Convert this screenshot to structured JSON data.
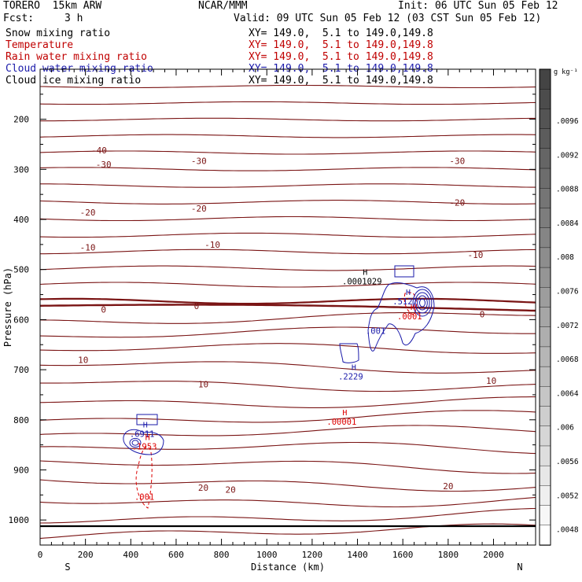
{
  "header": {
    "model": "TORERO  15km ARW",
    "org": "NCAR/MMM",
    "init": "Init: 06 UTC Sun 05 Feb 12",
    "fcst_label": "Fcst:",
    "fcst_value": "3 h",
    "valid": "Valid: 09 UTC Sun 05 Feb 12 (03 CST Sun 05 Feb 12)"
  },
  "fields": [
    {
      "name": "Snow mixing ratio",
      "xy": "XY= 149.0,  5.1 to 149.0,149.8",
      "color": "#000000"
    },
    {
      "name": "Temperature",
      "xy": "XY= 149.0,  5.1 to 149.0,149.8",
      "color": "#c00000"
    },
    {
      "name": "Rain water mixing ratio",
      "xy": "XY= 149.0,  5.1 to 149.0,149.8",
      "color": "#c00000"
    },
    {
      "name": "Cloud water mixing ratio",
      "xy": "XY= 149.0,  5.1 to 149.0,149.8",
      "color": "#1a1aaa"
    },
    {
      "name": "Cloud ice mixing ratio",
      "xy": "XY= 149.0,  5.1 to 149.0,149.8",
      "color": "#000000"
    }
  ],
  "colors": {
    "temperature": "#7a1414",
    "zero_isotherm": "#7a1414",
    "rain": "#dd0000",
    "cloud_water": "#1a1aaa",
    "ground": "#000000"
  },
  "chart_data": {
    "type": "contour",
    "xlabel": "Distance (km)",
    "ylabel": "Pressure (hPa)",
    "xlim": [
      0,
      2180
    ],
    "ylim": [
      1050,
      100
    ],
    "x_ticks": [
      0,
      200,
      400,
      600,
      800,
      1000,
      1200,
      1400,
      1600,
      1800,
      2000
    ],
    "y_ticks": [
      200,
      300,
      400,
      500,
      600,
      700,
      800,
      900,
      1000
    ],
    "x_start_label": "S",
    "x_end_label": "N",
    "colorbar": {
      "unit": "g kg⁻¹",
      "ticks": [
        ".0096",
        ".0092",
        ".0088",
        ".0084",
        ".008",
        ".0076",
        ".0072",
        ".0068",
        ".0064",
        ".006",
        ".0056",
        ".0052",
        ".0048"
      ],
      "range": [
        0.0046,
        0.01
      ],
      "shade_from": "#ffffff",
      "shade_to": "#444444"
    },
    "isotherm_labels": [
      {
        "text": "-40",
        "x": 260,
        "p": 262
      },
      {
        "text": "-30",
        "x": 280,
        "p": 290
      },
      {
        "text": "-30",
        "x": 700,
        "p": 283
      },
      {
        "text": "-30",
        "x": 1840,
        "p": 283
      },
      {
        "text": "-20",
        "x": 210,
        "p": 386
      },
      {
        "text": "-20",
        "x": 700,
        "p": 378
      },
      {
        "text": "-20",
        "x": 1840,
        "p": 366
      },
      {
        "text": "-10",
        "x": 210,
        "p": 456
      },
      {
        "text": "-10",
        "x": 760,
        "p": 450
      },
      {
        "text": "-10",
        "x": 1920,
        "p": 471
      },
      {
        "text": "0",
        "x": 280,
        "p": 580
      },
      {
        "text": "0",
        "x": 690,
        "p": 573
      },
      {
        "text": "0",
        "x": 1950,
        "p": 589
      },
      {
        "text": "10",
        "x": 190,
        "p": 680
      },
      {
        "text": "10",
        "x": 720,
        "p": 729
      },
      {
        "text": "10",
        "x": 1990,
        "p": 722
      },
      {
        "text": "20",
        "x": 720,
        "p": 935
      },
      {
        "text": "20",
        "x": 840,
        "p": 939
      },
      {
        "text": "20",
        "x": 1800,
        "p": 932
      }
    ],
    "extrema": [
      {
        "marker": "H",
        "value": ".0001029",
        "x": 1420,
        "p": 520,
        "color": "#000000"
      },
      {
        "marker": "H",
        "value": ".5127",
        "x": 1610,
        "p": 560,
        "color": "#1a1aaa"
      },
      {
        "marker": "H",
        "value": ".0001",
        "x": 1630,
        "p": 590,
        "color": "#dd0000"
      },
      {
        "marker": "",
        "value": ".001",
        "x": 1480,
        "p": 619,
        "color": "#1a1aaa"
      },
      {
        "marker": "H",
        "value": ".2229",
        "x": 1370,
        "p": 710,
        "color": "#1a1aaa"
      },
      {
        "marker": "H",
        "value": ".00001",
        "x": 1330,
        "p": 800,
        "color": "#dd0000"
      },
      {
        "marker": "H",
        "value": ".6911",
        "x": 450,
        "p": 825,
        "color": "#1a1aaa"
      },
      {
        "marker": "H",
        "value": ".1953",
        "x": 460,
        "p": 850,
        "color": "#dd0000"
      },
      {
        "marker": "",
        "value": ".001",
        "x": 460,
        "p": 950,
        "color": "#dd0000"
      }
    ]
  }
}
